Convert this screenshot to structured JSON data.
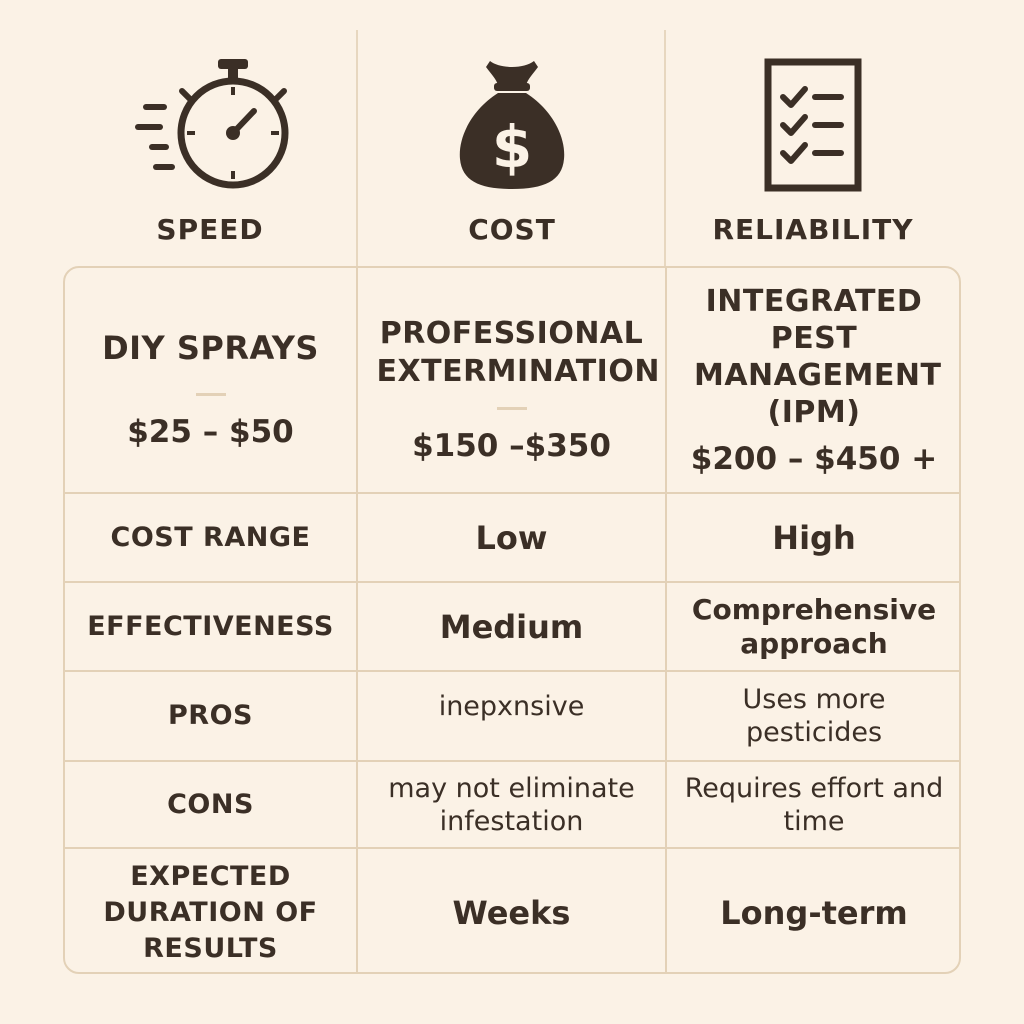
{
  "header": {
    "speed": {
      "label": "SPEED",
      "icon": "stopwatch-icon"
    },
    "cost": {
      "label": "COST",
      "icon": "money-bag-icon"
    },
    "reliability": {
      "label": "RELIABILITY",
      "icon": "checklist-icon"
    }
  },
  "methods": [
    {
      "title": "DIY SPRAYS",
      "price": "$25 – $50"
    },
    {
      "title": "PROFESSIONAL EXTERMINATION",
      "price": "$150 –$350"
    },
    {
      "title": "INTEGRATED PEST MANAGEMENT (IPM)",
      "price": "$200 – $450 +"
    }
  ],
  "rows": [
    {
      "label": "COST RANGE",
      "col2": "Low",
      "col3": "High"
    },
    {
      "label": "EFFECTIVENESS",
      "col2": "Medium",
      "col3": "Comprehensive approach"
    },
    {
      "label": "PROS",
      "col2": "inepxnsive",
      "col3": "Uses more pesticides"
    },
    {
      "label": "CONS",
      "col2": "may not eliminate infestation",
      "col3": "Requires effort and time"
    },
    {
      "label": "EXPECTED DURATION OF RESULTS",
      "col2": "Weeks",
      "col3": "Long-term"
    }
  ],
  "colors": {
    "background": "#fbf2e6",
    "ink": "#3b2f26",
    "border": "#e3d1b7"
  }
}
